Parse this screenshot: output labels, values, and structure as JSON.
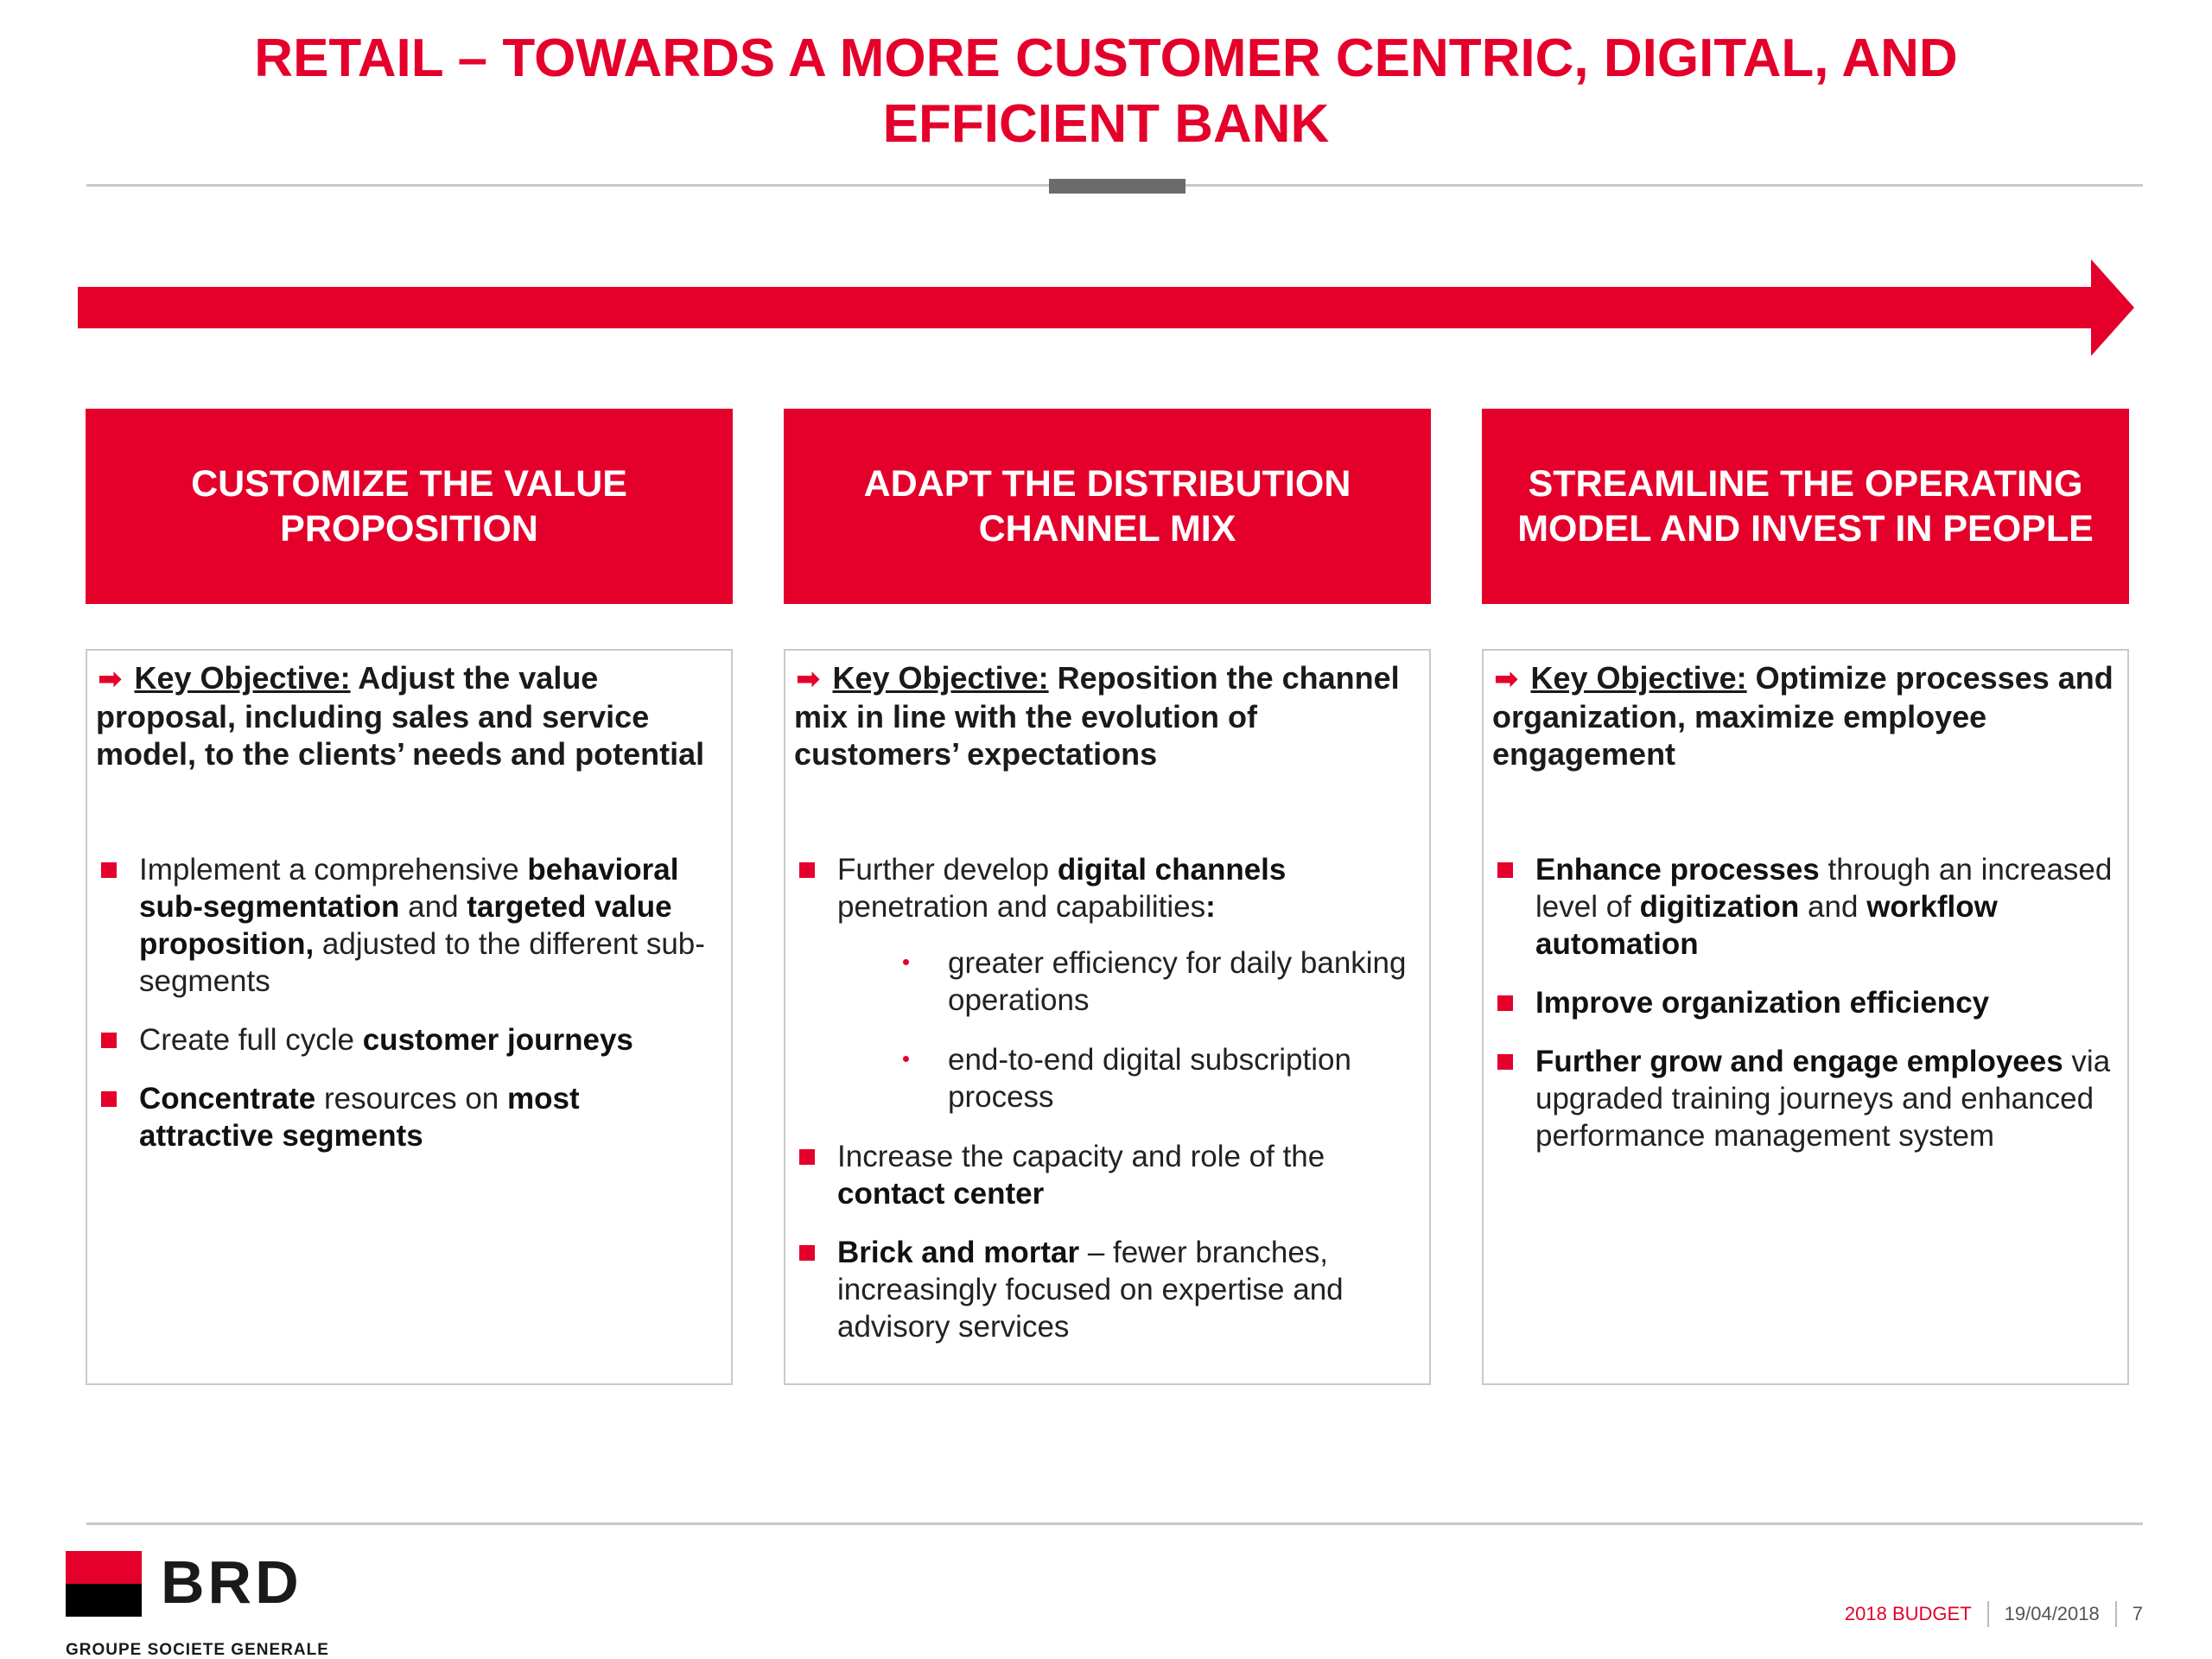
{
  "title": {
    "line1": "RETAIL  – TOWARDS A MORE CUSTOMER CENTRIC, DIGITAL, AND",
    "line2": "EFFICIENT BANK"
  },
  "columns": [
    {
      "heading": "CUSTOMIZE THE VALUE\nPROPOSITION",
      "objective_label": "Key Objective:",
      "objective_text": " Adjust the value proposal, including sales and service model, to the clients’ needs and potential",
      "bullets": [
        {
          "parts": [
            [
              "Implement a comprehensive ",
              false
            ],
            [
              "behavioral sub-segmentation",
              true
            ],
            [
              " and ",
              false
            ],
            [
              "targeted value proposition,",
              true
            ],
            [
              " adjusted to the different sub-segments",
              false
            ]
          ]
        },
        {
          "parts": [
            [
              "Create full cycle ",
              false
            ],
            [
              "customer journeys",
              true
            ]
          ]
        },
        {
          "parts": [
            [
              "Concentrate",
              true
            ],
            [
              " resources on ",
              false
            ],
            [
              "most attractive segments",
              true
            ]
          ]
        }
      ]
    },
    {
      "heading": "ADAPT THE DISTRIBUTION\nCHANNEL MIX",
      "objective_label": "Key Objective:",
      "objective_text": " Reposition the channel mix in line with the evolution of customers’ expectations",
      "bullets": [
        {
          "parts": [
            [
              "Further develop ",
              false
            ],
            [
              "digital channels",
              true
            ],
            [
              " penetration and capabilities",
              false
            ],
            [
              ":",
              true
            ]
          ],
          "sub": [
            "greater efficiency for daily banking operations",
            "end-to-end digital subscription process"
          ]
        },
        {
          "parts": [
            [
              "Increase the capacity and role of the ",
              false
            ],
            [
              "contact center",
              true
            ]
          ]
        },
        {
          "parts": [
            [
              "Brick and mortar",
              true
            ],
            [
              " – fewer branches, increasingly focused on expertise and advisory services",
              false
            ]
          ]
        }
      ]
    },
    {
      "heading": "STREAMLINE THE OPERATING\nMODEL AND INVEST IN PEOPLE",
      "objective_label": "Key Objective:",
      "objective_text": " Optimize processes and organization, maximize employee engagement",
      "bullets": [
        {
          "parts": [
            [
              "Enhance processes",
              true
            ],
            [
              " through an increased level of ",
              false
            ],
            [
              "digitization",
              true
            ],
            [
              " and ",
              false
            ],
            [
              "workflow automation",
              true
            ]
          ]
        },
        {
          "parts": [
            [
              "Improve organization efficiency",
              true
            ]
          ]
        },
        {
          "parts": [
            [
              "Further grow and engage employees",
              true
            ],
            [
              " via upgraded training journeys and enhanced performance management system",
              false
            ]
          ]
        }
      ]
    }
  ],
  "logo": {
    "name": "BRD",
    "subtitle": "GROUPE SOCIETE GENERALE"
  },
  "footer": {
    "budget": "2018 BUDGET",
    "date": "19/04/2018",
    "page": "7"
  },
  "colors": {
    "accent": "#e4002b",
    "rule": "#c8c8c8",
    "rule_accent": "#6b6b6b"
  }
}
